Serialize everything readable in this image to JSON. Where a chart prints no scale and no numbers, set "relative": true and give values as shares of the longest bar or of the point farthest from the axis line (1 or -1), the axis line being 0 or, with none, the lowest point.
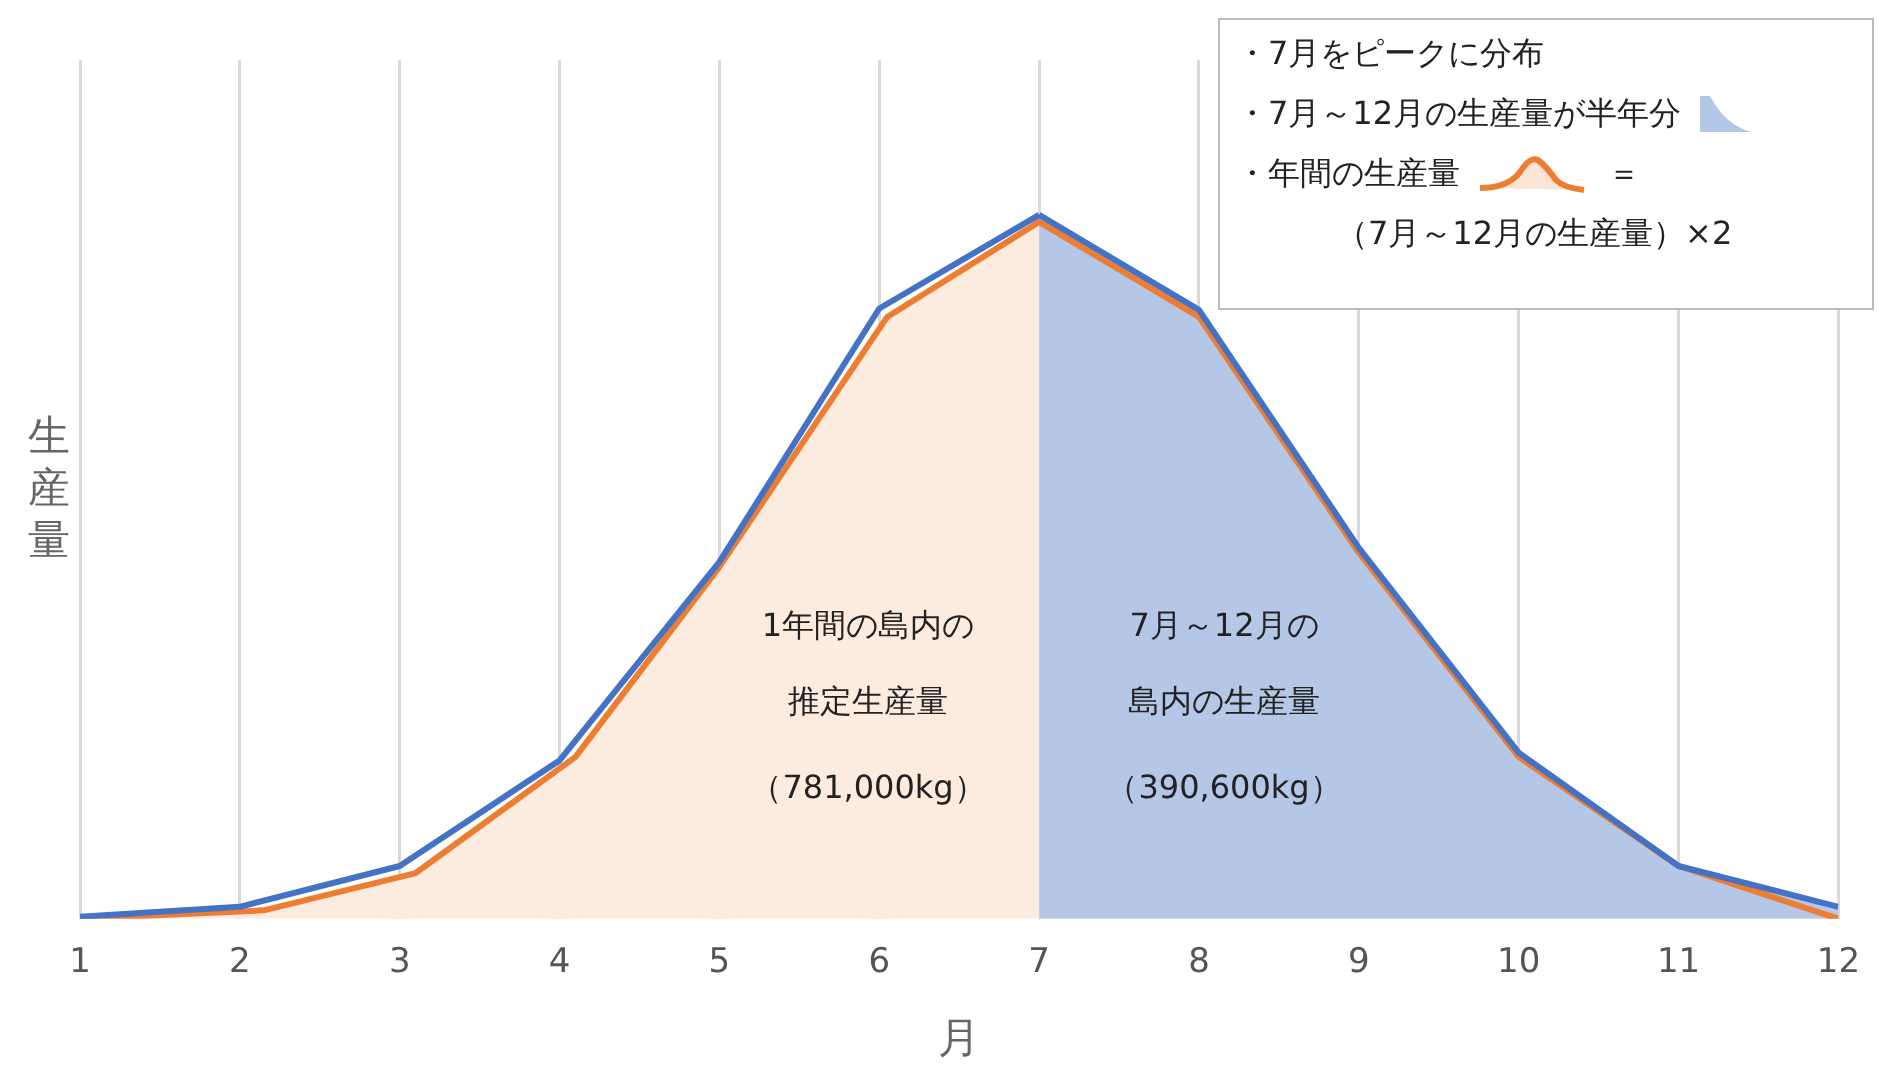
{
  "chart_data": {
    "type": "line",
    "relative": true,
    "xlabel": "月",
    "ylabel": "生産量",
    "xlim": [
      1,
      12
    ],
    "xticks": [
      1,
      2,
      3,
      4,
      5,
      6,
      7,
      8,
      9,
      10,
      11,
      12
    ],
    "grid": "x",
    "legend": false,
    "series": [
      {
        "type": "area",
        "color": "#ed7d31",
        "x": [
          1,
          2.15,
          3.1,
          4.1,
          5,
          6.05,
          7,
          8,
          9,
          10,
          11,
          12
        ],
        "values": [
          0,
          0.012,
          0.065,
          0.23,
          0.5,
          0.855,
          0.99,
          0.855,
          0.52,
          0.23,
          0.075,
          0
        ]
      },
      {
        "type": "line",
        "color": "#4472c4",
        "x": [
          1,
          2,
          3,
          4,
          5,
          6,
          7
        ],
        "values": [
          0.003,
          0.017,
          0.075,
          0.225,
          0.507,
          0.867,
          1
        ]
      },
      {
        "type": "area",
        "color": "#b4c7e7",
        "x": [
          7,
          8,
          9,
          10,
          11,
          12
        ],
        "values": [
          1,
          0.865,
          0.527,
          0.236,
          0.075,
          0.017
        ]
      }
    ],
    "annotations": [
      "1年間の島内の",
      "推定生産量",
      "（781,000kg）",
      "7月～12月の",
      "島内の生産量",
      "（390,600kg）",
      "・7月をピークに分布",
      "・7月～12月の生産量が半年分",
      "・年間の生産量",
      "＝",
      "（7月～12月の生産量）×2"
    ]
  }
}
